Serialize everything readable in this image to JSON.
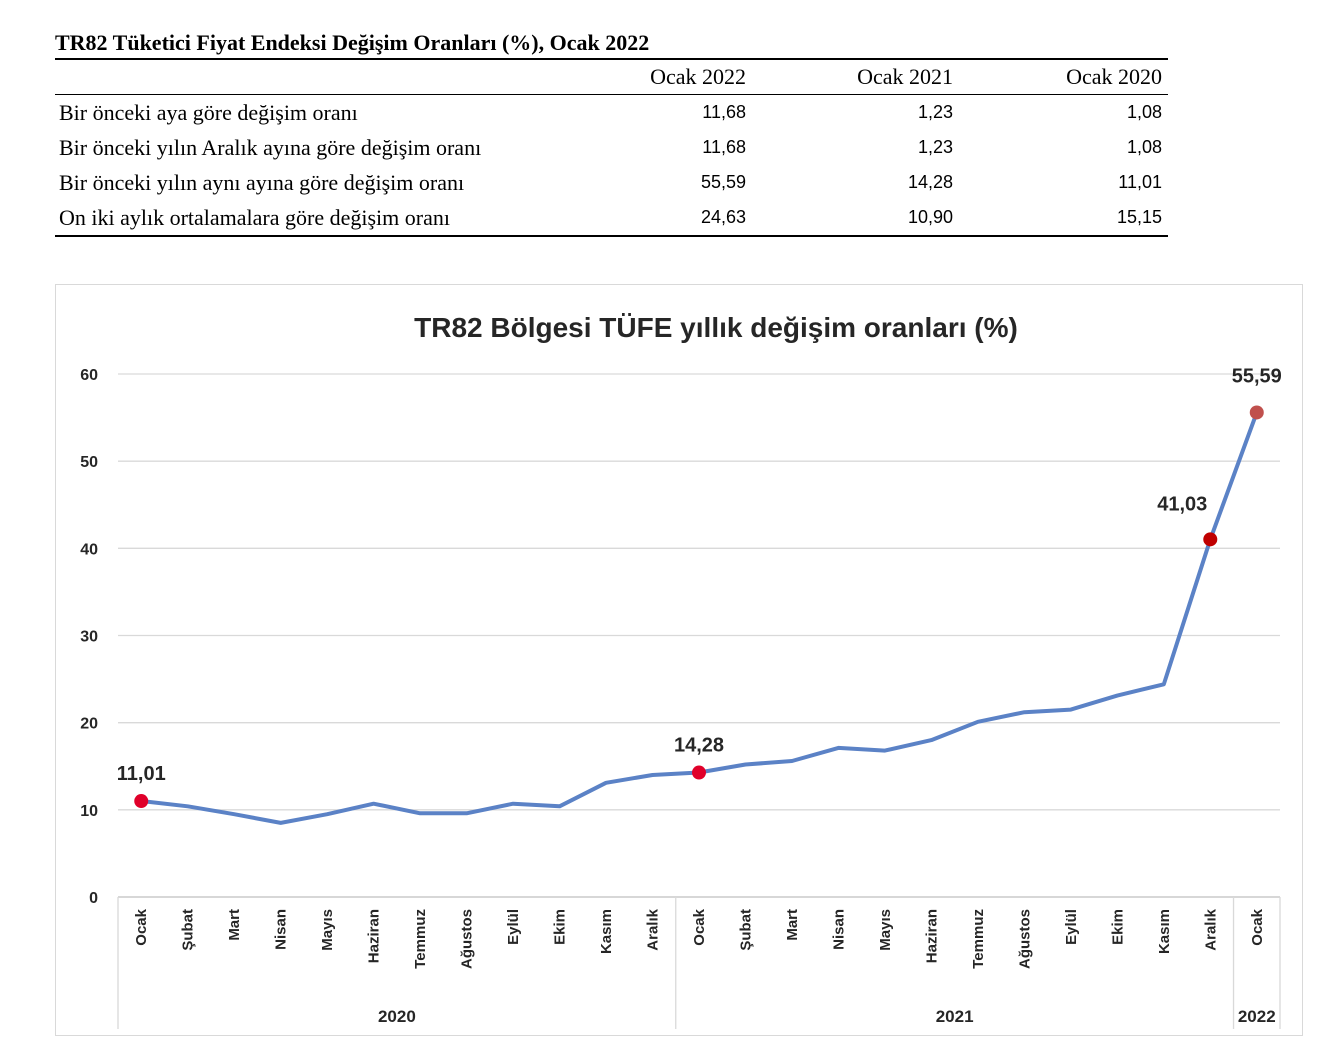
{
  "table": {
    "title": "TR82 Tüketici Fiyat Endeksi Değişim Oranları (%), Ocak 2022",
    "columns": [
      "",
      "Ocak 2022",
      "Ocak 2021",
      "Ocak 2020"
    ],
    "rows": [
      {
        "label": "Bir önceki aya göre değişim oranı",
        "values": [
          "11,68",
          "1,23",
          "1,08"
        ]
      },
      {
        "label": "Bir önceki yılın Aralık ayına göre değişim oranı",
        "values": [
          "11,68",
          "1,23",
          "1,08"
        ]
      },
      {
        "label": "Bir önceki yılın aynı ayına göre değişim oranı",
        "values": [
          "55,59",
          "14,28",
          "11,01"
        ]
      },
      {
        "label": "On iki aylık ortalamalara göre değişim oranı",
        "values": [
          "24,63",
          "10,90",
          "15,15"
        ]
      }
    ]
  },
  "chart_data": {
    "type": "line",
    "title": "TR82 Bölgesi TÜFE yıllık değişim oranları (%)",
    "xlabel": "",
    "ylabel": "",
    "ylim": [
      0,
      60
    ],
    "yticks": [
      0,
      10,
      20,
      30,
      40,
      50,
      60
    ],
    "grid": true,
    "categories": [
      "Ocak",
      "Şubat",
      "Mart",
      "Nisan",
      "Mayıs",
      "Haziran",
      "Temmuz",
      "Ağustos",
      "Eylül",
      "Ekim",
      "Kasım",
      "Aralık",
      "Ocak",
      "Şubat",
      "Mart",
      "Nisan",
      "Mayıs",
      "Haziran",
      "Temmuz",
      "Ağustos",
      "Eylül",
      "Ekim",
      "Kasım",
      "Aralık",
      "Ocak"
    ],
    "year_groups": [
      {
        "label": "2020",
        "count": 12
      },
      {
        "label": "2021",
        "count": 12
      },
      {
        "label": "2022",
        "count": 1
      }
    ],
    "series": [
      {
        "values": [
          11.01,
          10.4,
          9.5,
          8.5,
          9.5,
          10.7,
          9.6,
          9.6,
          10.7,
          10.4,
          13.1,
          14.0,
          14.28,
          15.2,
          15.6,
          17.1,
          16.8,
          18.0,
          20.1,
          21.2,
          21.5,
          23.1,
          24.4,
          41.03,
          55.59
        ],
        "color": "#5b82c6"
      }
    ],
    "highlighted_points": [
      {
        "index": 0,
        "label": "11,01",
        "color": "#e0002a"
      },
      {
        "index": 12,
        "label": "14,28",
        "color": "#e0002a"
      },
      {
        "index": 23,
        "label": "41,03",
        "color": "#c00000"
      },
      {
        "index": 24,
        "label": "55,59",
        "color": "#c0504d"
      }
    ]
  }
}
